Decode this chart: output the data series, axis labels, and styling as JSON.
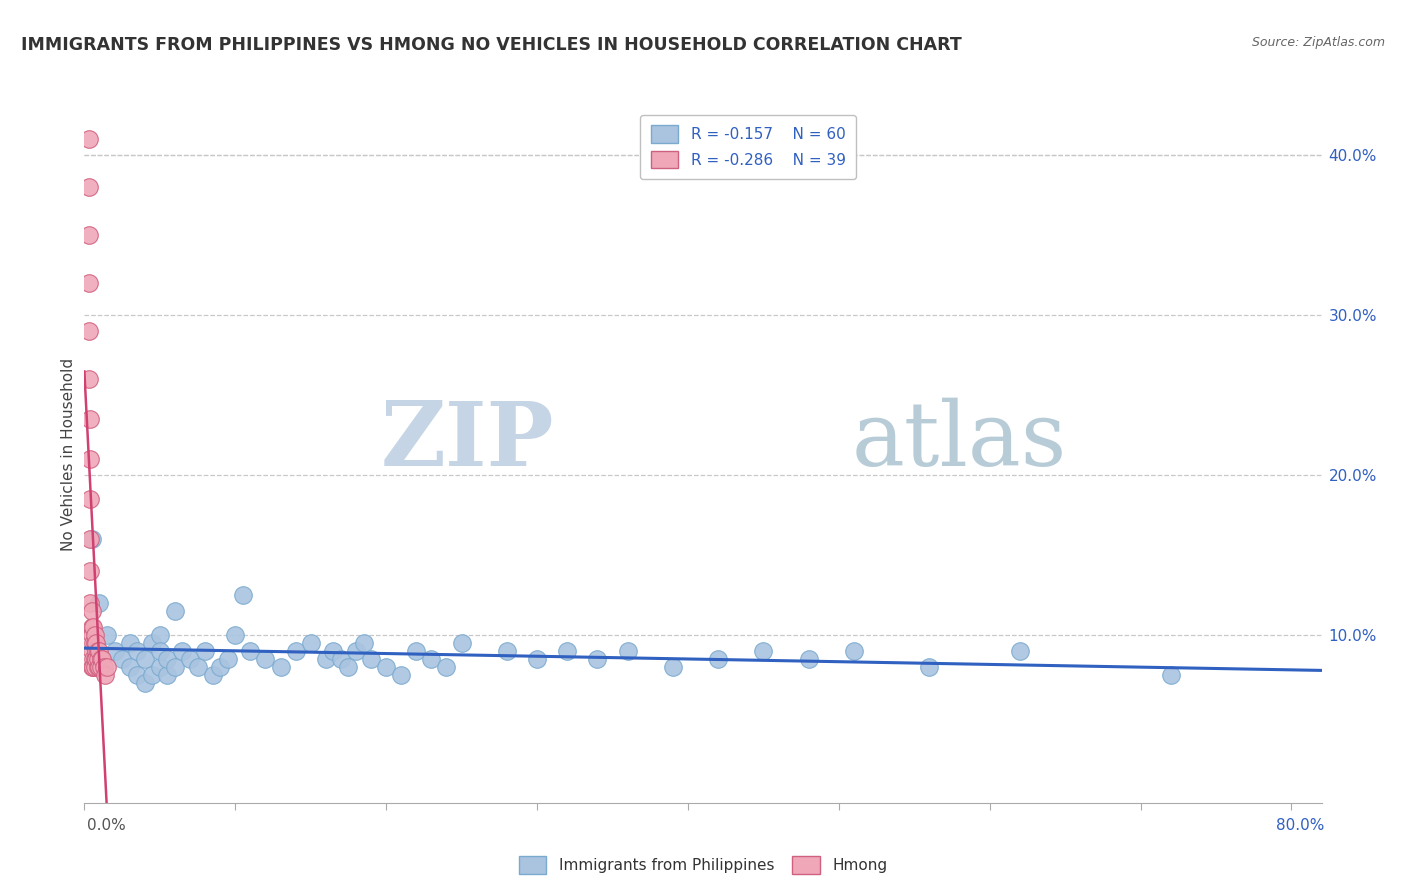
{
  "title": "IMMIGRANTS FROM PHILIPPINES VS HMONG NO VEHICLES IN HOUSEHOLD CORRELATION CHART",
  "source": "Source: ZipAtlas.com",
  "ylabel": "No Vehicles in Household",
  "xlim": [
    0.0,
    0.82
  ],
  "ylim": [
    -0.005,
    0.43
  ],
  "legend_r_blue": "R = -0.157",
  "legend_n_blue": "N = 60",
  "legend_r_pink": "R = -0.286",
  "legend_n_pink": "N = 39",
  "blue_color": "#aac4e0",
  "blue_edge": "#7aaad0",
  "blue_line": "#3060c0",
  "pink_color": "#f0a8b8",
  "pink_edge": "#d06080",
  "pink_line": "#d04070",
  "background_color": "#ffffff",
  "grid_color": "#c8c8c8",
  "title_color": "#333333",
  "watermark_zip_color": "#c8d8e8",
  "watermark_atlas_color": "#b8c8d8",
  "blue_x": [
    0.005,
    0.01,
    0.015,
    0.02,
    0.025,
    0.03,
    0.03,
    0.035,
    0.035,
    0.04,
    0.04,
    0.045,
    0.045,
    0.05,
    0.05,
    0.05,
    0.055,
    0.055,
    0.06,
    0.06,
    0.065,
    0.07,
    0.075,
    0.08,
    0.085,
    0.09,
    0.095,
    0.1,
    0.105,
    0.11,
    0.12,
    0.13,
    0.14,
    0.15,
    0.16,
    0.165,
    0.17,
    0.175,
    0.18,
    0.185,
    0.19,
    0.2,
    0.21,
    0.22,
    0.23,
    0.24,
    0.25,
    0.28,
    0.3,
    0.32,
    0.34,
    0.36,
    0.39,
    0.42,
    0.45,
    0.48,
    0.51,
    0.56,
    0.62,
    0.72
  ],
  "blue_y": [
    0.16,
    0.12,
    0.1,
    0.09,
    0.085,
    0.08,
    0.095,
    0.075,
    0.09,
    0.07,
    0.085,
    0.095,
    0.075,
    0.1,
    0.08,
    0.09,
    0.075,
    0.085,
    0.08,
    0.115,
    0.09,
    0.085,
    0.08,
    0.09,
    0.075,
    0.08,
    0.085,
    0.1,
    0.125,
    0.09,
    0.085,
    0.08,
    0.09,
    0.095,
    0.085,
    0.09,
    0.085,
    0.08,
    0.09,
    0.095,
    0.085,
    0.08,
    0.075,
    0.09,
    0.085,
    0.08,
    0.095,
    0.09,
    0.085,
    0.09,
    0.085,
    0.09,
    0.08,
    0.085,
    0.09,
    0.085,
    0.09,
    0.08,
    0.09,
    0.075
  ],
  "pink_x": [
    0.003,
    0.003,
    0.003,
    0.003,
    0.003,
    0.003,
    0.004,
    0.004,
    0.004,
    0.004,
    0.004,
    0.004,
    0.005,
    0.005,
    0.005,
    0.005,
    0.005,
    0.006,
    0.006,
    0.006,
    0.006,
    0.007,
    0.007,
    0.007,
    0.007,
    0.008,
    0.008,
    0.008,
    0.009,
    0.009,
    0.009,
    0.01,
    0.01,
    0.011,
    0.011,
    0.012,
    0.013,
    0.014,
    0.015
  ],
  "pink_y": [
    0.41,
    0.38,
    0.35,
    0.32,
    0.29,
    0.26,
    0.235,
    0.21,
    0.185,
    0.16,
    0.14,
    0.12,
    0.105,
    0.09,
    0.08,
    0.1,
    0.115,
    0.095,
    0.085,
    0.105,
    0.08,
    0.095,
    0.085,
    0.1,
    0.08,
    0.09,
    0.085,
    0.095,
    0.08,
    0.09,
    0.085,
    0.08,
    0.09,
    0.085,
    0.08,
    0.085,
    0.08,
    0.075,
    0.08
  ]
}
